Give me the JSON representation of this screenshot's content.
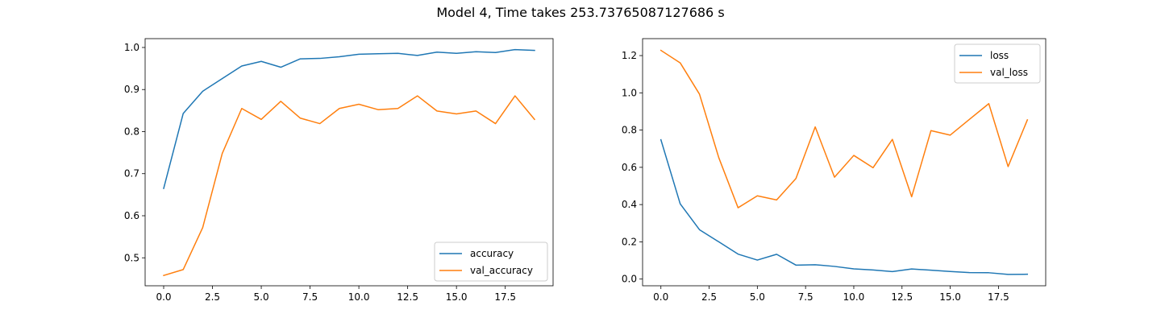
{
  "figure": {
    "title": "Model 4, Time takes 253.73765087127686 s"
  },
  "chart_data": [
    {
      "type": "line",
      "title": "",
      "xlabel": "",
      "ylabel": "",
      "xlim": [
        -0.95,
        19.95
      ],
      "ylim": [
        0.4335,
        1.021
      ],
      "xticks": [
        0.0,
        2.5,
        5.0,
        7.5,
        10.0,
        12.5,
        15.0,
        17.5
      ],
      "xtick_labels": [
        "0.0",
        "2.5",
        "5.0",
        "7.5",
        "10.0",
        "12.5",
        "15.0",
        "17.5"
      ],
      "yticks": [
        0.5,
        0.6,
        0.7,
        0.8,
        0.9,
        1.0
      ],
      "ytick_labels": [
        "0.5",
        "0.6",
        "0.7",
        "0.8",
        "0.9",
        "1.0"
      ],
      "legend": "lower-right",
      "grid": false,
      "x": [
        0,
        1,
        2,
        3,
        4,
        5,
        6,
        7,
        8,
        9,
        10,
        11,
        12,
        13,
        14,
        15,
        16,
        17,
        18,
        19
      ],
      "series": [
        {
          "name": "accuracy",
          "color": "#1f77b4",
          "values": [
            0.665,
            0.843,
            0.896,
            0.926,
            0.956,
            0.967,
            0.953,
            0.973,
            0.974,
            0.978,
            0.984,
            0.985,
            0.986,
            0.981,
            0.989,
            0.986,
            0.99,
            0.988,
            0.995,
            0.993
          ]
        },
        {
          "name": "val_accuracy",
          "color": "#ff7f0e",
          "values": [
            0.458,
            0.472,
            0.572,
            0.748,
            0.855,
            0.829,
            0.872,
            0.832,
            0.819,
            0.855,
            0.865,
            0.852,
            0.855,
            0.885,
            0.849,
            0.842,
            0.849,
            0.819,
            0.885,
            0.829
          ]
        }
      ]
    },
    {
      "type": "line",
      "title": "",
      "xlabel": "",
      "ylabel": "",
      "xlim": [
        -0.95,
        19.95
      ],
      "ylim": [
        -0.036,
        1.291
      ],
      "xticks": [
        0.0,
        2.5,
        5.0,
        7.5,
        10.0,
        12.5,
        15.0,
        17.5
      ],
      "xtick_labels": [
        "0.0",
        "2.5",
        "5.0",
        "7.5",
        "10.0",
        "12.5",
        "15.0",
        "17.5"
      ],
      "yticks": [
        0.0,
        0.2,
        0.4,
        0.6,
        0.8,
        1.0,
        1.2
      ],
      "ytick_labels": [
        "0.0",
        "0.2",
        "0.4",
        "0.6",
        "0.8",
        "1.0",
        "1.2"
      ],
      "legend": "upper-right",
      "grid": false,
      "x": [
        0,
        1,
        2,
        3,
        4,
        5,
        6,
        7,
        8,
        9,
        10,
        11,
        12,
        13,
        14,
        15,
        16,
        17,
        18,
        19
      ],
      "series": [
        {
          "name": "loss",
          "color": "#1f77b4",
          "values": [
            0.748,
            0.404,
            0.265,
            0.2,
            0.134,
            0.102,
            0.133,
            0.075,
            0.077,
            0.068,
            0.055,
            0.049,
            0.04,
            0.054,
            0.048,
            0.041,
            0.035,
            0.034,
            0.025,
            0.026
          ]
        },
        {
          "name": "val_loss",
          "color": "#ff7f0e",
          "values": [
            1.228,
            1.161,
            0.993,
            0.652,
            0.383,
            0.447,
            0.425,
            0.54,
            0.817,
            0.547,
            0.664,
            0.598,
            0.75,
            0.442,
            0.797,
            0.773,
            0.858,
            0.942,
            0.604,
            0.855
          ]
        }
      ]
    }
  ]
}
